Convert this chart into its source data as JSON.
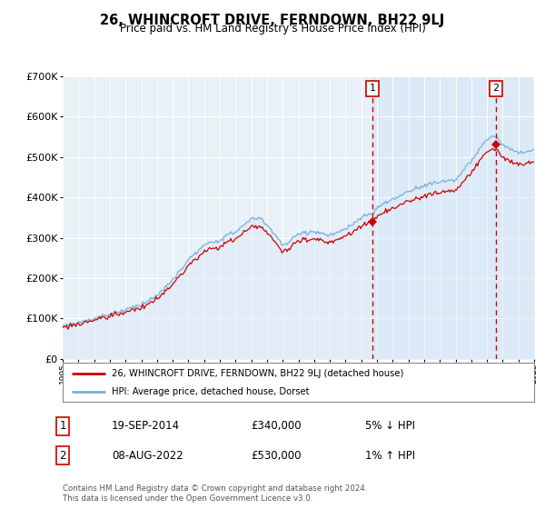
{
  "title": "26, WHINCROFT DRIVE, FERNDOWN, BH22 9LJ",
  "subtitle": "Price paid vs. HM Land Registry's House Price Index (HPI)",
  "background_color": "#ffffff",
  "plot_background_left": "#e8f0f8",
  "plot_background_right": "#dce9f7",
  "grid_color": "#ffffff",
  "ylim": [
    0,
    700000
  ],
  "yticks": [
    0,
    100000,
    200000,
    300000,
    400000,
    500000,
    600000,
    700000
  ],
  "ytick_labels": [
    "£0",
    "£100K",
    "£200K",
    "£300K",
    "£400K",
    "£500K",
    "£600K",
    "£700K"
  ],
  "transaction1_date": 2014.72,
  "transaction1_price": 340000,
  "transaction1_label": "1",
  "transaction2_date": 2022.58,
  "transaction2_price": 530000,
  "transaction2_label": "2",
  "legend_line1": "26, WHINCROFT DRIVE, FERNDOWN, BH22 9LJ (detached house)",
  "legend_line2": "HPI: Average price, detached house, Dorset",
  "table_row1_num": "1",
  "table_row1_date": "19-SEP-2014",
  "table_row1_price": "£340,000",
  "table_row1_hpi": "5% ↓ HPI",
  "table_row2_num": "2",
  "table_row2_date": "08-AUG-2022",
  "table_row2_price": "£530,000",
  "table_row2_hpi": "1% ↑ HPI",
  "footer": "Contains HM Land Registry data © Crown copyright and database right 2024.\nThis data is licensed under the Open Government Licence v3.0.",
  "hpi_color": "#7ab0d8",
  "price_color": "#cc0000",
  "vline_color": "#cc0000",
  "hpi_fill_color": "#dce9f7"
}
